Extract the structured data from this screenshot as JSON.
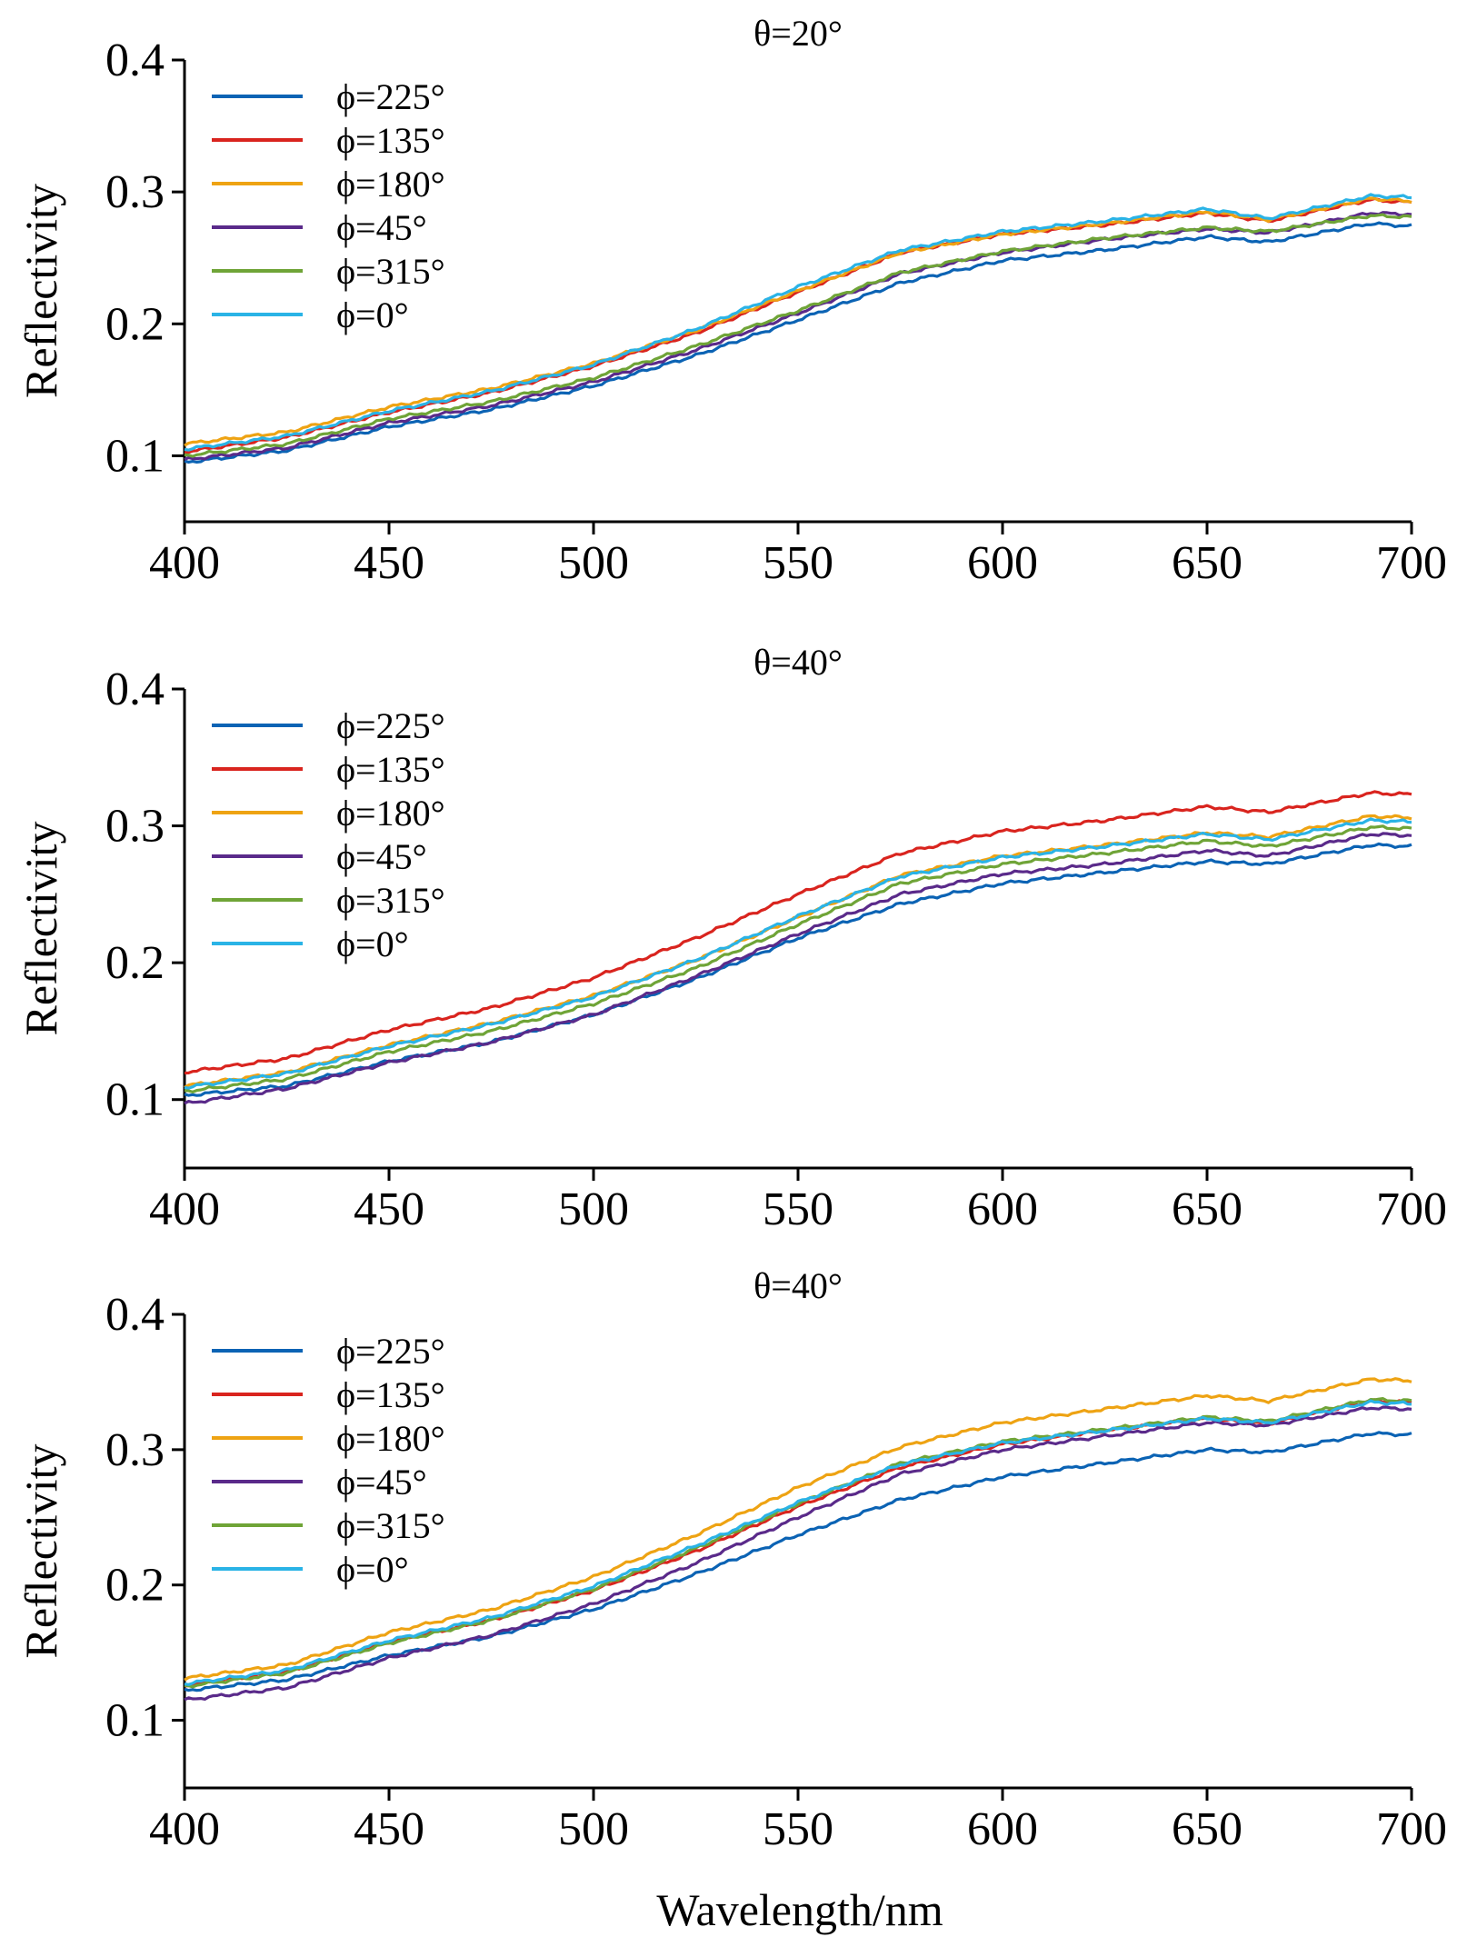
{
  "figure": {
    "xlabel": "Wavelength/nm"
  },
  "colors": {
    "phi_225": "#0b63b4",
    "phi_135": "#d9241e",
    "phi_180": "#eea313",
    "phi_45": "#5a2a8a",
    "phi_315": "#6fa437",
    "phi_0": "#2ab3e6"
  },
  "chart_data": [
    {
      "type": "line",
      "title": "θ=20°",
      "xlabel": "",
      "ylabel": "Reflectivity",
      "xlim": [
        400,
        700
      ],
      "ylim": [
        0.05,
        0.4
      ],
      "xticks": [
        "400",
        "450",
        "500",
        "550",
        "600",
        "650",
        "700"
      ],
      "yticks": [
        "0.1",
        "0.2",
        "0.3",
        "0.4"
      ],
      "x": [
        400,
        425,
        450,
        475,
        500,
        525,
        550,
        575,
        600,
        625,
        650,
        665,
        690,
        700
      ],
      "series": [
        {
          "name": "ϕ=225°",
          "color": "#0b63b4",
          "values": [
            0.095,
            0.104,
            0.122,
            0.135,
            0.153,
            0.176,
            0.203,
            0.231,
            0.248,
            0.256,
            0.266,
            0.262,
            0.276,
            0.274
          ]
        },
        {
          "name": "ϕ=135°",
          "color": "#d9241e",
          "values": [
            0.103,
            0.114,
            0.133,
            0.148,
            0.168,
            0.193,
            0.224,
            0.254,
            0.268,
            0.275,
            0.284,
            0.278,
            0.294,
            0.292
          ]
        },
        {
          "name": "ϕ=180°",
          "color": "#eea313",
          "values": [
            0.109,
            0.118,
            0.137,
            0.151,
            0.17,
            0.195,
            0.225,
            0.254,
            0.268,
            0.276,
            0.285,
            0.279,
            0.295,
            0.293
          ]
        },
        {
          "name": "ϕ=45°",
          "color": "#5a2a8a",
          "values": [
            0.097,
            0.106,
            0.125,
            0.138,
            0.156,
            0.18,
            0.208,
            0.238,
            0.254,
            0.264,
            0.272,
            0.269,
            0.284,
            0.283
          ]
        },
        {
          "name": "ϕ=315°",
          "color": "#6fa437",
          "values": [
            0.1,
            0.109,
            0.128,
            0.141,
            0.159,
            0.183,
            0.21,
            0.239,
            0.255,
            0.265,
            0.273,
            0.27,
            0.282,
            0.281
          ]
        },
        {
          "name": "ϕ=0°",
          "color": "#2ab3e6",
          "values": [
            0.105,
            0.115,
            0.134,
            0.149,
            0.169,
            0.196,
            0.228,
            0.256,
            0.27,
            0.278,
            0.287,
            0.28,
            0.297,
            0.296
          ]
        }
      ]
    },
    {
      "type": "line",
      "title": "θ=40°",
      "xlabel": "",
      "ylabel": "Reflectivity",
      "xlim": [
        400,
        700
      ],
      "ylim": [
        0.05,
        0.4
      ],
      "xticks": [
        "400",
        "450",
        "500",
        "550",
        "600",
        "650",
        "700"
      ],
      "yticks": [
        "0.1",
        "0.2",
        "0.3",
        "0.4"
      ],
      "x": [
        400,
        425,
        450,
        475,
        500,
        525,
        550,
        575,
        600,
        625,
        650,
        665,
        690,
        700
      ],
      "series": [
        {
          "name": "ϕ=225°",
          "color": "#0b63b4",
          "values": [
            0.103,
            0.11,
            0.128,
            0.142,
            0.162,
            0.188,
            0.218,
            0.243,
            0.258,
            0.266,
            0.274,
            0.272,
            0.286,
            0.285
          ]
        },
        {
          "name": "ϕ=135°",
          "color": "#d9241e",
          "values": [
            0.12,
            0.13,
            0.151,
            0.167,
            0.189,
            0.218,
            0.25,
            0.28,
            0.296,
            0.304,
            0.314,
            0.31,
            0.324,
            0.323
          ]
        },
        {
          "name": "ϕ=180°",
          "color": "#eea313",
          "values": [
            0.11,
            0.12,
            0.14,
            0.156,
            0.176,
            0.202,
            0.233,
            0.264,
            0.278,
            0.286,
            0.295,
            0.292,
            0.307,
            0.306
          ]
        },
        {
          "name": "ϕ=45°",
          "color": "#5a2a8a",
          "values": [
            0.097,
            0.108,
            0.127,
            0.142,
            0.162,
            0.19,
            0.221,
            0.25,
            0.265,
            0.272,
            0.282,
            0.278,
            0.294,
            0.293
          ]
        },
        {
          "name": "ϕ=315°",
          "color": "#6fa437",
          "values": [
            0.106,
            0.115,
            0.135,
            0.15,
            0.17,
            0.196,
            0.228,
            0.258,
            0.272,
            0.28,
            0.289,
            0.285,
            0.299,
            0.298
          ]
        },
        {
          "name": "ϕ=0°",
          "color": "#2ab3e6",
          "values": [
            0.109,
            0.119,
            0.139,
            0.155,
            0.175,
            0.202,
            0.234,
            0.263,
            0.277,
            0.285,
            0.294,
            0.29,
            0.304,
            0.303
          ]
        }
      ]
    },
    {
      "type": "line",
      "title": "θ=40°",
      "xlabel": "Wavelength/nm",
      "ylabel": "Reflectivity",
      "xlim": [
        400,
        700
      ],
      "ylim": [
        0.05,
        0.4
      ],
      "xticks": [
        "400",
        "450",
        "500",
        "550",
        "600",
        "650",
        "700"
      ],
      "yticks": [
        "0.1",
        "0.2",
        "0.3",
        "0.4"
      ],
      "x": [
        400,
        425,
        450,
        475,
        500,
        525,
        550,
        575,
        600,
        625,
        650,
        665,
        690,
        700
      ],
      "series": [
        {
          "name": "ϕ=225°",
          "color": "#0b63b4",
          "values": [
            0.122,
            0.13,
            0.148,
            0.162,
            0.182,
            0.208,
            0.237,
            0.263,
            0.28,
            0.29,
            0.3,
            0.298,
            0.312,
            0.311
          ]
        },
        {
          "name": "ϕ=135°",
          "color": "#d9241e",
          "values": [
            0.126,
            0.136,
            0.158,
            0.174,
            0.196,
            0.225,
            0.258,
            0.287,
            0.304,
            0.314,
            0.323,
            0.319,
            0.336,
            0.335
          ]
        },
        {
          "name": "ϕ=180°",
          "color": "#eea313",
          "values": [
            0.131,
            0.141,
            0.165,
            0.182,
            0.206,
            0.237,
            0.272,
            0.302,
            0.32,
            0.33,
            0.34,
            0.336,
            0.352,
            0.351
          ]
        },
        {
          "name": "ϕ=45°",
          "color": "#5a2a8a",
          "values": [
            0.115,
            0.124,
            0.146,
            0.163,
            0.186,
            0.216,
            0.25,
            0.282,
            0.3,
            0.31,
            0.32,
            0.318,
            0.331,
            0.33
          ]
        },
        {
          "name": "ϕ=315°",
          "color": "#6fa437",
          "values": [
            0.125,
            0.135,
            0.157,
            0.174,
            0.197,
            0.227,
            0.26,
            0.29,
            0.306,
            0.315,
            0.324,
            0.321,
            0.337,
            0.336
          ]
        },
        {
          "name": "ϕ=0°",
          "color": "#2ab3e6",
          "values": [
            0.127,
            0.137,
            0.159,
            0.176,
            0.199,
            0.229,
            0.261,
            0.289,
            0.305,
            0.314,
            0.323,
            0.32,
            0.335,
            0.334
          ]
        }
      ]
    }
  ]
}
